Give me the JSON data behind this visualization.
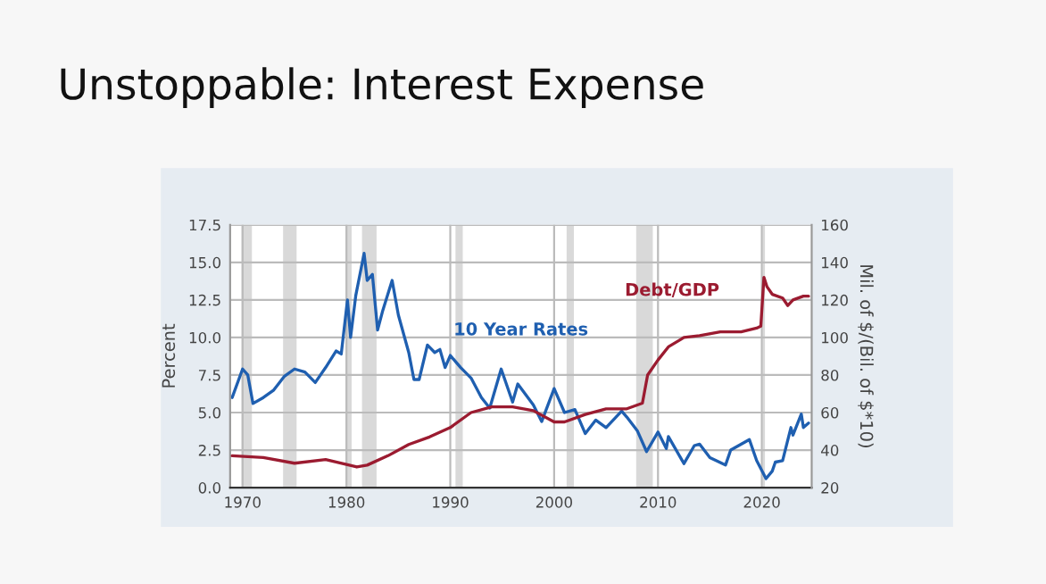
{
  "chart_data": {
    "type": "line",
    "title": "Unstoppable: Interest Expense",
    "ylabel": "Percent",
    "y2label": "Mil. of $/(Bil. of $*10)",
    "xlim": [
      1968.8,
      2024.8
    ],
    "xticks": [
      1970,
      1980,
      1990,
      2000,
      2010,
      2020
    ],
    "ylim": [
      0,
      17.5
    ],
    "yticks": [
      {
        "value": 0,
        "label": "0.0"
      },
      {
        "value": 2.5,
        "label": "2.5"
      },
      {
        "value": 5,
        "label": "5.0"
      },
      {
        "value": 7.5,
        "label": "7.5"
      },
      {
        "value": 10,
        "label": "10.0"
      },
      {
        "value": 12.5,
        "label": "12.5"
      },
      {
        "value": 15,
        "label": "15.0"
      },
      {
        "value": 17.5,
        "label": "17.5"
      }
    ],
    "y2lim": [
      20,
      160
    ],
    "y2ticks": [
      20,
      40,
      60,
      80,
      100,
      120,
      140,
      160
    ],
    "grid": true,
    "legend": false,
    "line_style": "solid",
    "marker": "none",
    "bands": [
      {
        "axis": "x",
        "from": 1969.9,
        "to": 1970.9,
        "color": "#d9d9d9"
      },
      {
        "axis": "x",
        "from": 1973.9,
        "to": 1975.2,
        "color": "#d9d9d9"
      },
      {
        "axis": "x",
        "from": 1980.0,
        "to": 1980.5,
        "color": "#d9d9d9"
      },
      {
        "axis": "x",
        "from": 1981.5,
        "to": 1982.9,
        "color": "#d9d9d9"
      },
      {
        "axis": "x",
        "from": 1990.5,
        "to": 1991.2,
        "color": "#d9d9d9"
      },
      {
        "axis": "x",
        "from": 2001.2,
        "to": 2001.9,
        "color": "#d9d9d9"
      },
      {
        "axis": "x",
        "from": 2007.9,
        "to": 2009.5,
        "color": "#d9d9d9"
      },
      {
        "axis": "x",
        "from": 2020.1,
        "to": 2020.3,
        "color": "#d9d9d9"
      }
    ],
    "series": [
      {
        "name": "10 Year Rates",
        "color": "#1f5fb0",
        "x": [
          1969,
          1970,
          1970.5,
          1971,
          1972,
          1973,
          1974,
          1975,
          1976,
          1977,
          1978,
          1979,
          1979.5,
          1980.1,
          1980.4,
          1980.9,
          1981.7,
          1982,
          1982.5,
          1983,
          1983.5,
          1984.4,
          1985,
          1986,
          1986.5,
          1987,
          1987.8,
          1988.5,
          1989,
          1989.5,
          1990,
          1991,
          1992,
          1993,
          1993.8,
          1994.9,
          1996,
          1996.5,
          1998,
          1998.8,
          2000,
          2001,
          2002,
          2003,
          2004,
          2005,
          2006.5,
          2007,
          2008,
          2008.9,
          2010,
          2010.8,
          2011,
          2012.5,
          2013.5,
          2014,
          2015,
          2016.5,
          2017,
          2018.8,
          2019.5,
          2020.4,
          2021,
          2021.3,
          2022,
          2022.8,
          2023,
          2023.8,
          2024,
          2024.5
        ],
        "values": [
          6.0,
          7.9,
          7.5,
          5.6,
          6.0,
          6.5,
          7.4,
          7.9,
          7.7,
          7.0,
          8.0,
          9.1,
          8.9,
          12.5,
          10.0,
          12.8,
          15.6,
          13.8,
          14.2,
          10.5,
          11.8,
          13.8,
          11.5,
          9.0,
          7.2,
          7.2,
          9.5,
          9.0,
          9.2,
          8.0,
          8.8,
          8.0,
          7.3,
          6.0,
          5.3,
          7.9,
          5.7,
          6.9,
          5.5,
          4.4,
          6.6,
          5.0,
          5.2,
          3.6,
          4.5,
          4.0,
          5.1,
          4.7,
          3.8,
          2.4,
          3.7,
          2.6,
          3.4,
          1.6,
          2.8,
          2.9,
          2.0,
          1.5,
          2.5,
          3.2,
          1.8,
          0.6,
          1.1,
          1.7,
          1.8,
          4.0,
          3.5,
          4.9,
          4.0,
          4.3
        ]
      },
      {
        "name": "Debt/GDP",
        "color": "#9b1b30",
        "axis": "y2",
        "x": [
          1969,
          1972,
          1975,
          1978,
          1981,
          1982,
          1984,
          1986,
          1988,
          1990,
          1992,
          1994,
          1996,
          1998,
          2000,
          2001,
          2003,
          2005,
          2007,
          2008.5,
          2009,
          2010,
          2011,
          2012.5,
          2014,
          2016,
          2017,
          2018,
          2019.5,
          2019.9,
          2020.2,
          2020.5,
          2021,
          2022,
          2022.5,
          2023,
          2024,
          2024.5
        ],
        "values": [
          37,
          36,
          33,
          35,
          31,
          32,
          37,
          43,
          47,
          52,
          60,
          63,
          63,
          61,
          55,
          55,
          59,
          62,
          62,
          65,
          80,
          88,
          95,
          100,
          101,
          103,
          103,
          103,
          105,
          106,
          132,
          127,
          123,
          121,
          117,
          120,
          122,
          122
        ]
      }
    ]
  }
}
